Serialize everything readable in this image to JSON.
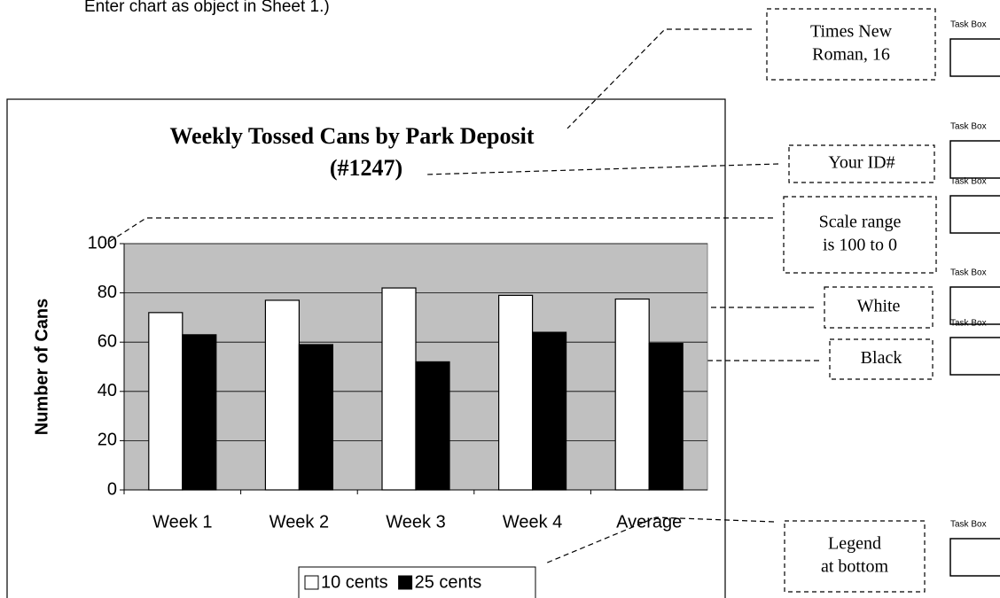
{
  "instruction": "Enter chart as object in Sheet 1.)",
  "chart_data": {
    "type": "bar",
    "title": "Weekly Tossed Cans by Park Deposit",
    "subtitle": "(#1247)",
    "y_label": "Number of Cans",
    "categories": [
      "Week 1",
      "Week 2",
      "Week 3",
      "Week 4",
      "Average"
    ],
    "series": [
      {
        "name": "10 cents",
        "color": "#ffffff",
        "values": [
          72,
          77,
          82,
          79,
          77.5
        ]
      },
      {
        "name": "25 cents",
        "color": "#000000",
        "values": [
          63,
          59,
          52,
          64,
          59.5
        ]
      }
    ],
    "ylim": [
      0,
      100
    ],
    "yticks": [
      0,
      20,
      40,
      60,
      80,
      100
    ],
    "grid": true,
    "legend": "bottom",
    "plot_background": "#c0c0c0"
  },
  "callouts": [
    {
      "lines": [
        "Times New",
        "Roman, 16"
      ]
    },
    {
      "lines": [
        "Your ID#"
      ]
    },
    {
      "lines": [
        "Scale range",
        "is 100 to 0"
      ]
    },
    {
      "lines": [
        "White"
      ]
    },
    {
      "lines": [
        "Black"
      ]
    },
    {
      "lines": [
        "Legend",
        "at bottom"
      ]
    }
  ],
  "task_boxes": [
    "Task Box",
    "Task Box",
    "Task Box",
    "Task Box",
    "Task Box",
    "Task Box"
  ]
}
